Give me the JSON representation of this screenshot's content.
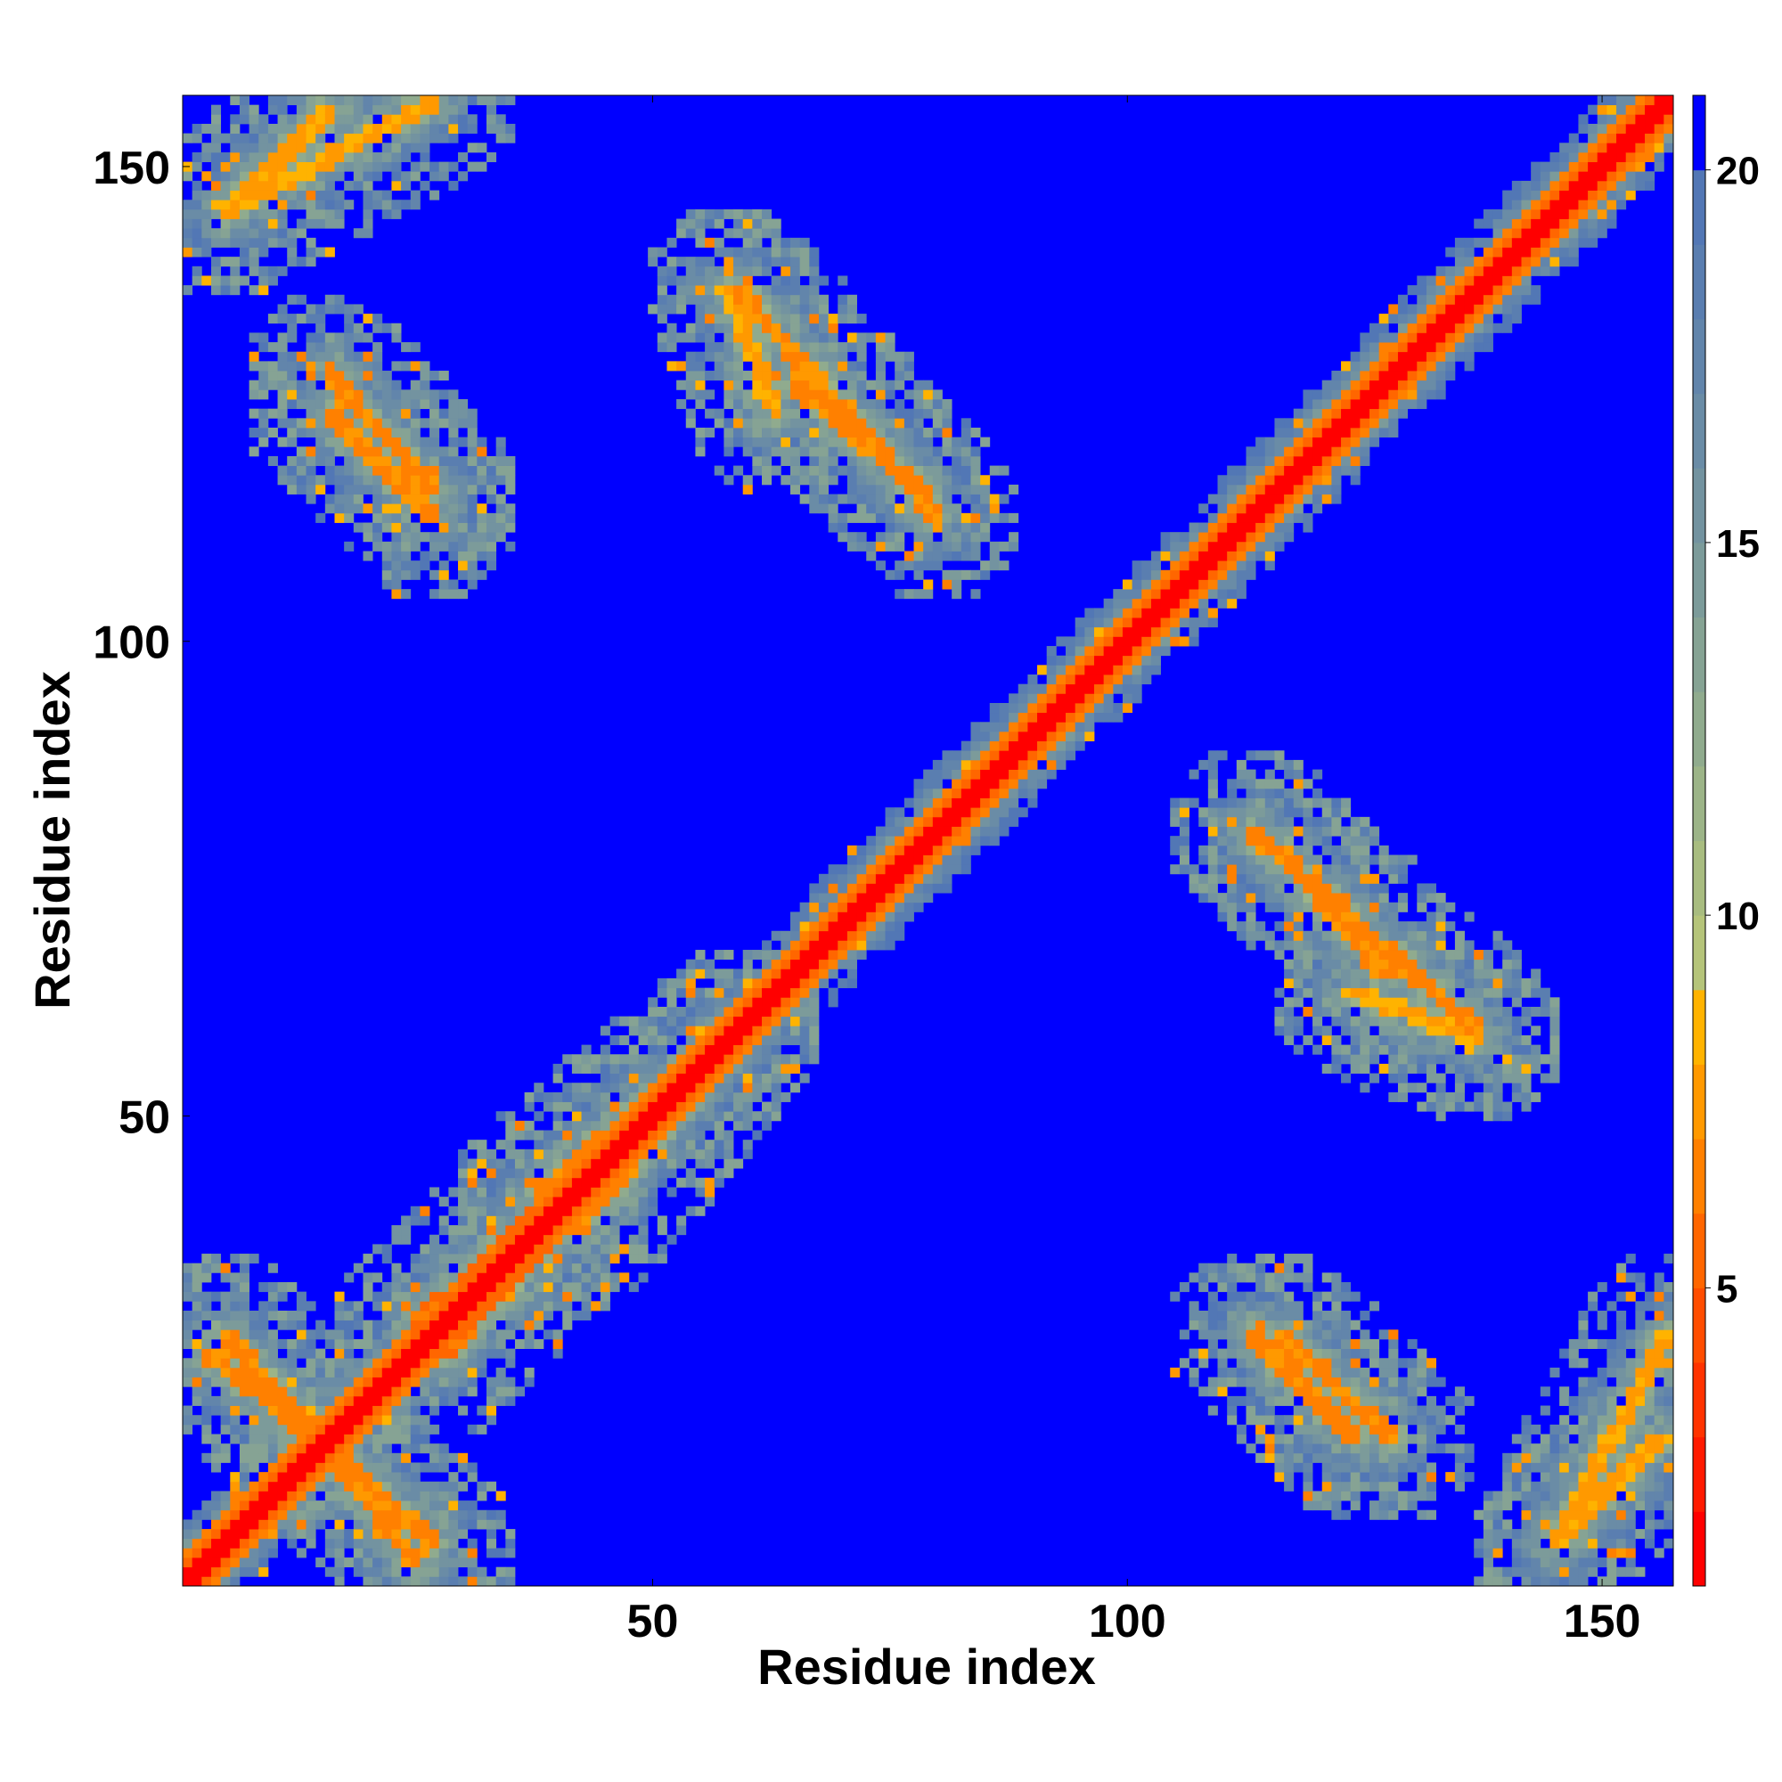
{
  "chart_data": {
    "type": "heatmap",
    "title": "",
    "xlabel": "Residue index",
    "ylabel": "Residue index",
    "n_residues": 157,
    "xlim": [
      1,
      157
    ],
    "ylim": [
      1,
      157
    ],
    "x_ticks": [
      50,
      100,
      150
    ],
    "y_ticks": [
      50,
      100,
      150
    ],
    "x_tick_labels": [
      "50",
      "100",
      "150"
    ],
    "y_tick_labels": [
      "50",
      "100",
      "150"
    ],
    "colorbar": {
      "range": [
        1,
        21
      ],
      "ticks": [
        5,
        10,
        15,
        20
      ],
      "tick_labels": [
        "5",
        "10",
        "15",
        "20"
      ],
      "position": "right",
      "bands": [
        {
          "from": 1,
          "to": 2,
          "color": "#ff0000"
        },
        {
          "from": 2,
          "to": 3,
          "color": "#ff1a00"
        },
        {
          "from": 3,
          "to": 4,
          "color": "#ff3300"
        },
        {
          "from": 4,
          "to": 5,
          "color": "#ff4d00"
        },
        {
          "from": 5,
          "to": 6,
          "color": "#ff6600"
        },
        {
          "from": 6,
          "to": 7,
          "color": "#ff8000"
        },
        {
          "from": 7,
          "to": 8,
          "color": "#ff9900"
        },
        {
          "from": 8,
          "to": 9,
          "color": "#ffb300"
        },
        {
          "from": 9,
          "to": 10,
          "color": "#b5c47a"
        },
        {
          "from": 10,
          "to": 11,
          "color": "#a8bc80"
        },
        {
          "from": 11,
          "to": 12,
          "color": "#9cb488"
        },
        {
          "from": 12,
          "to": 13,
          "color": "#90ab8e"
        },
        {
          "from": 13,
          "to": 14,
          "color": "#86a394"
        },
        {
          "from": 14,
          "to": 15,
          "color": "#7c9b9a"
        },
        {
          "from": 15,
          "to": 16,
          "color": "#7393a0"
        },
        {
          "from": 16,
          "to": 17,
          "color": "#6a8ca6"
        },
        {
          "from": 17,
          "to": 18,
          "color": "#6285ab"
        },
        {
          "from": 18,
          "to": 19,
          "color": "#5a7eb0"
        },
        {
          "from": 19,
          "to": 20,
          "color": "#5277b5"
        },
        {
          "from": 20,
          "to": 21,
          "color": "#0000ff"
        }
      ]
    },
    "background_value": 21,
    "features": [
      {
        "kind": "diagonal",
        "from": 1,
        "to": 157,
        "core_value": 1.5,
        "halo_width": 3
      },
      {
        "kind": "band",
        "from": [
          5,
          145
        ],
        "to": [
          27,
          157
        ],
        "value": 7
      },
      {
        "kind": "band",
        "from": [
          16,
          128
        ],
        "to": [
          27,
          116
        ],
        "value": 6
      },
      {
        "kind": "band",
        "from": [
          58,
          137
        ],
        "to": [
          63,
          124
        ],
        "value": 7
      },
      {
        "kind": "band",
        "from": [
          65,
          127
        ],
        "to": [
          78,
          116
        ],
        "value": 6
      },
      {
        "kind": "band",
        "from": [
          113,
          80
        ],
        "to": [
          137,
          59
        ],
        "value": 6
      },
      {
        "kind": "band",
        "from": [
          113,
          27
        ],
        "to": [
          124,
          16
        ],
        "value": 6
      },
      {
        "kind": "band",
        "from": [
          145,
          5
        ],
        "to": [
          156,
          16
        ],
        "value": 7
      },
      {
        "kind": "band",
        "from": [
          3,
          25
        ],
        "to": [
          16,
          15
        ],
        "value": 6
      },
      {
        "kind": "band",
        "from": [
          16,
          15
        ],
        "to": [
          27,
          5
        ],
        "value": 6
      },
      {
        "kind": "band",
        "from": [
          38,
          42
        ],
        "to": [
          59,
          59
        ],
        "value": 6
      },
      {
        "kind": "band",
        "from": [
          25,
          28
        ],
        "to": [
          38,
          40
        ],
        "value": 5
      }
    ]
  }
}
